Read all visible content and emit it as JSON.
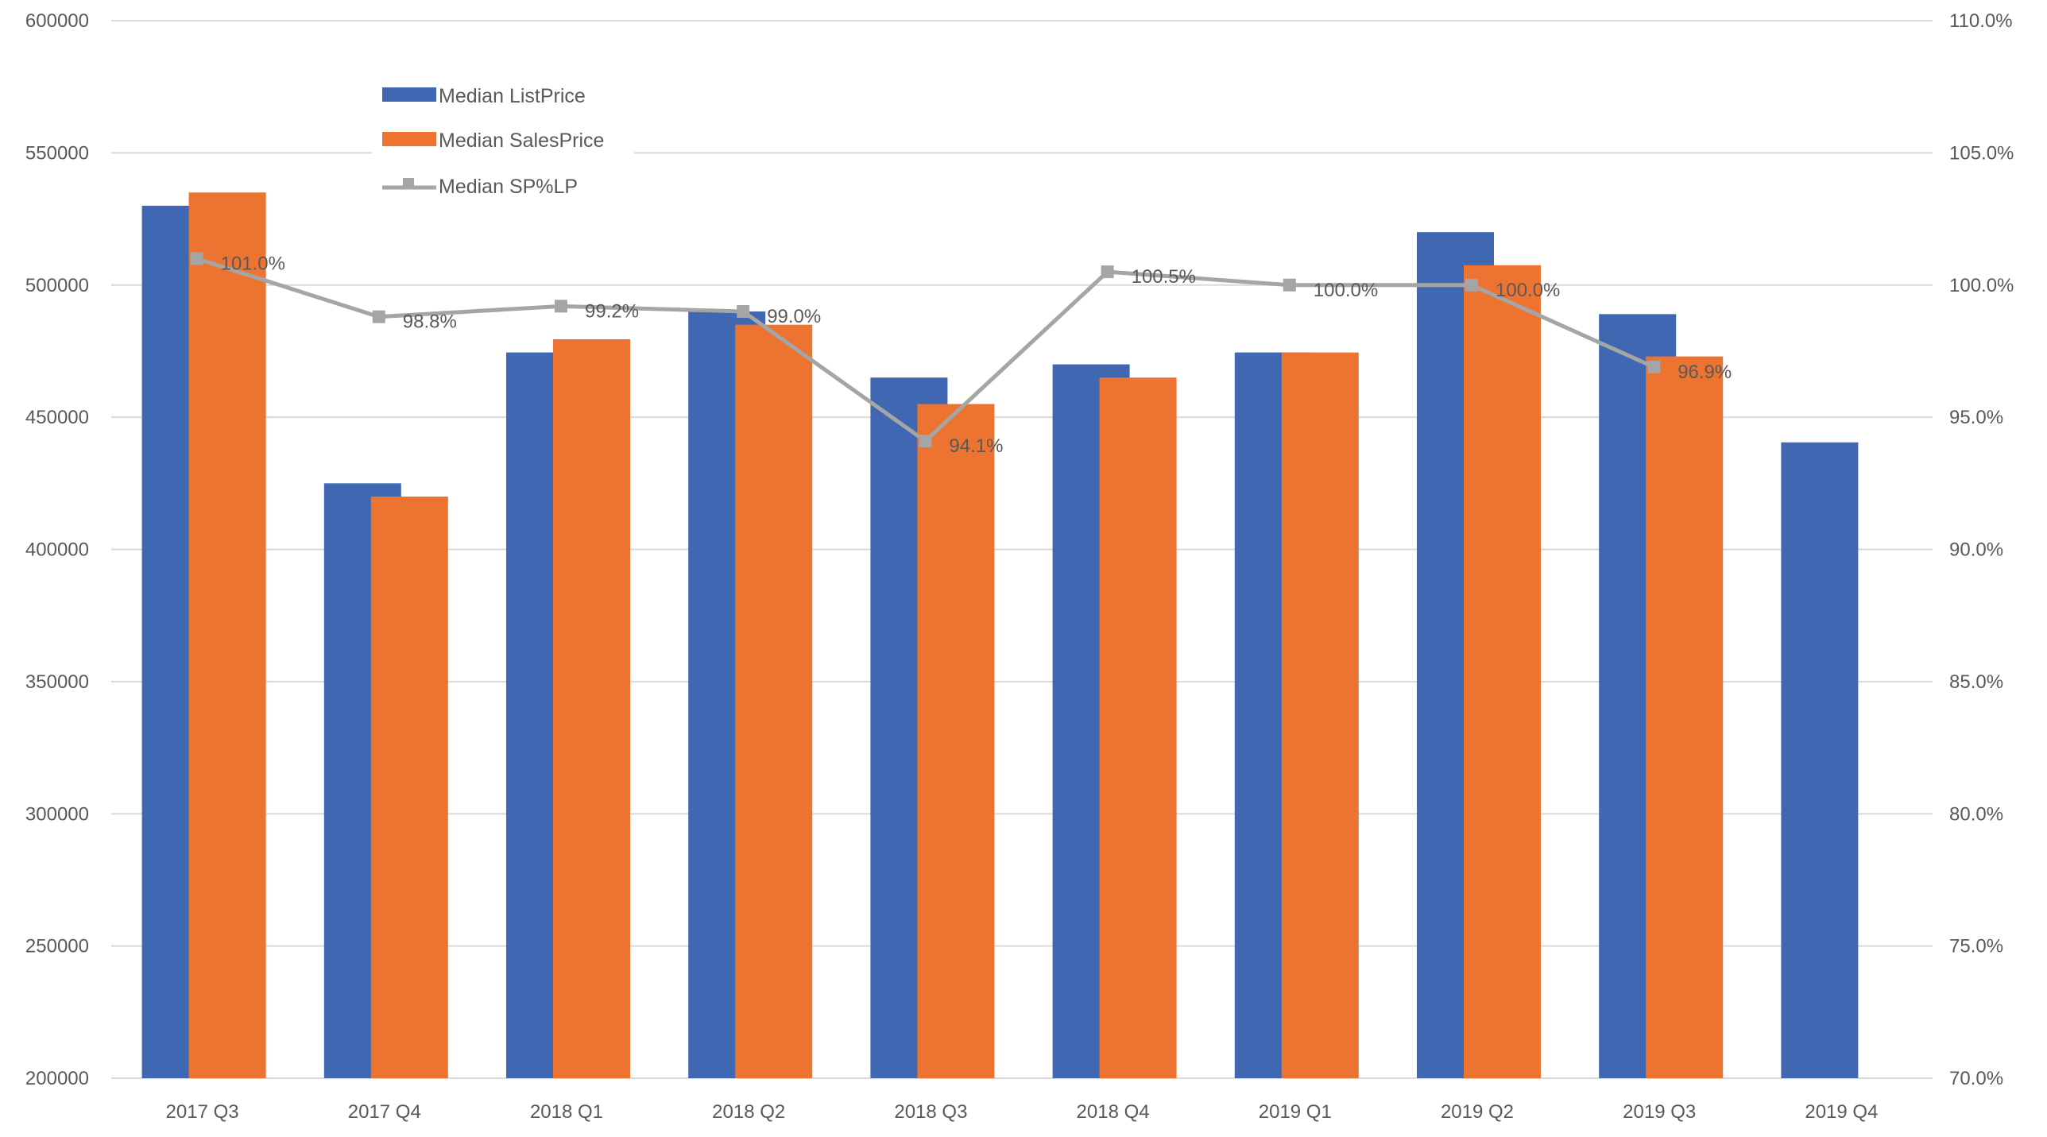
{
  "chart_data": {
    "type": "bar",
    "title": "",
    "xlabel": "",
    "ylabel": "",
    "categories": [
      "2017 Q3",
      "2017 Q4",
      "2018 Q1",
      "2018 Q2",
      "2018 Q3",
      "2018 Q4",
      "2019 Q1",
      "2019 Q2",
      "2019 Q3",
      "2019 Q4"
    ],
    "ylim": [
      200000,
      600000
    ],
    "y_ticks": [
      "200000",
      "250000",
      "300000",
      "350000",
      "400000",
      "450000",
      "500000",
      "550000",
      "600000"
    ],
    "y2lim": [
      70.0,
      110.0
    ],
    "y2_ticks": [
      "70.0%",
      "75.0%",
      "80.0%",
      "85.0%",
      "90.0%",
      "95.0%",
      "100.0%",
      "105.0%",
      "110.0%"
    ],
    "grid": true,
    "legend_position": "top-left",
    "series": [
      {
        "name": "Median ListPrice",
        "type": "bar",
        "axis": "left",
        "color": "#4068B2",
        "values": [
          530000,
          425000,
          474500,
          490000,
          465000,
          470000,
          474500,
          520000,
          489000,
          440500
        ]
      },
      {
        "name": "Median SalesPrice",
        "type": "bar",
        "axis": "left",
        "color": "#ED7330",
        "values": [
          535000,
          420000,
          479500,
          485000,
          455000,
          465000,
          474500,
          507500,
          473000,
          null
        ]
      },
      {
        "name": "Median SP%LP",
        "type": "line",
        "axis": "right",
        "color": "#A5A5A5",
        "marker": "square",
        "values": [
          101.0,
          98.8,
          99.2,
          99.0,
          94.1,
          100.5,
          100.0,
          100.0,
          96.9,
          null
        ],
        "data_labels": [
          "101.0%",
          "98.8%",
          "99.2%",
          "99.0%",
          "94.1%",
          "100.5%",
          "100.0%",
          "100.0%",
          "96.9%",
          ""
        ]
      }
    ]
  }
}
